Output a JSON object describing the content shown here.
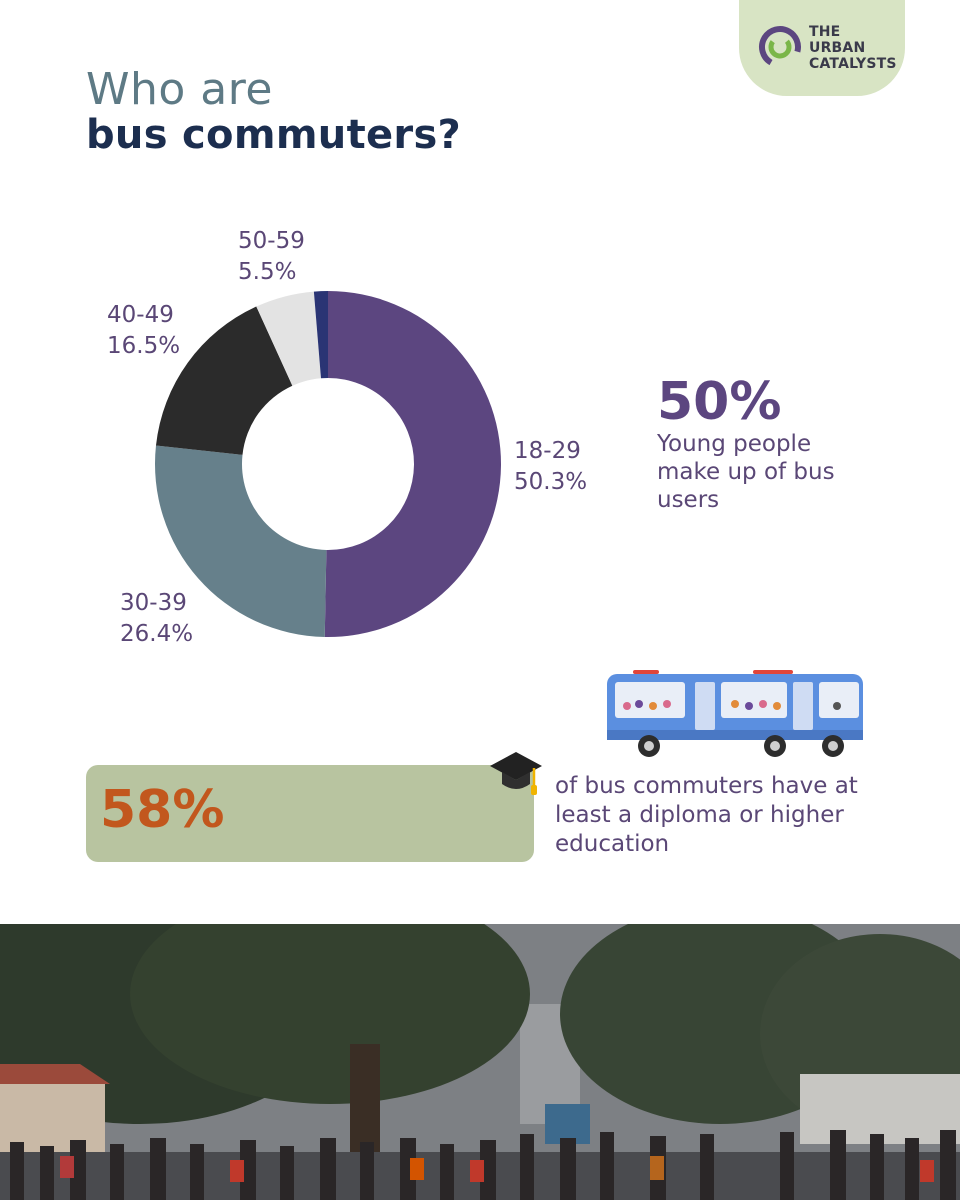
{
  "logo": {
    "lines": [
      "THE",
      "URBAN",
      "CATALYSTS"
    ],
    "accent_color": "#5c4680",
    "ring_color": "#7ab648"
  },
  "title": {
    "line1": "Who are",
    "line2": "bus commuters?"
  },
  "chart_data": {
    "type": "pie",
    "donut": true,
    "slices": [
      {
        "label": "18-29",
        "value": 50.3,
        "display": "50.3%",
        "color": "#5c4680"
      },
      {
        "label": "30-39",
        "value": 26.4,
        "display": "26.4%",
        "color": "#66808b"
      },
      {
        "label": "40-49",
        "value": 16.5,
        "display": "16.5%",
        "color": "#2b2b2b"
      },
      {
        "label": "50-59",
        "value": 5.5,
        "display": "5.5%",
        "color": "#e3e3e3"
      },
      {
        "label": "",
        "value": 1.3,
        "display": "",
        "color": "#2a3474"
      }
    ]
  },
  "stat_young": {
    "value": "50%",
    "description": "Young people make up of bus users"
  },
  "stat_education": {
    "value": "58%",
    "fill_fraction": 0.58,
    "description": "of bus commuters have at least a diploma or higher education",
    "value_color": "#c2571d",
    "bar_color": "#b8c4a0"
  },
  "icons": {
    "bus": "bus-illustration-icon",
    "graduation": "graduation-cap-icon"
  }
}
